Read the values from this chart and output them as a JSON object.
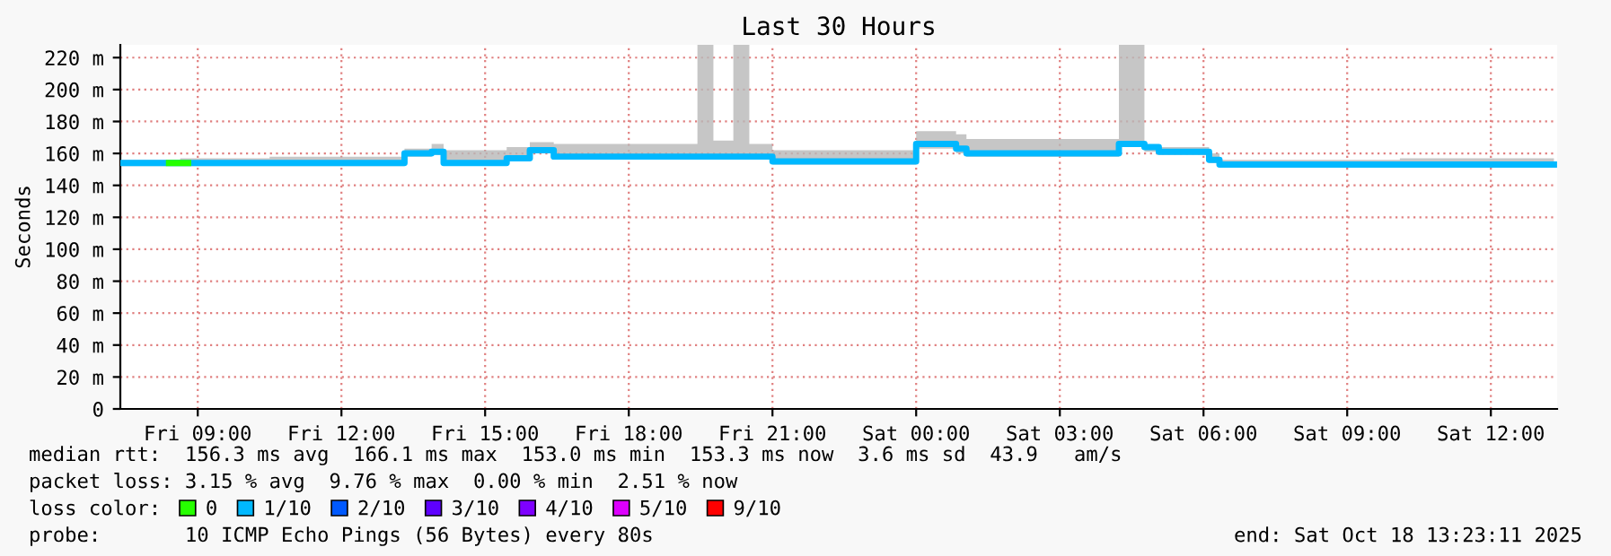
{
  "chart_data": {
    "type": "step",
    "title": "Last 30 Hours",
    "ylabel": "Seconds",
    "legend_title": "loss color:",
    "xlim": [
      "2025-10-17T07:23",
      "2025-10-18T13:23"
    ],
    "xticks": [
      {
        "value": "2025-10-17T09:00",
        "label": "Fri 09:00"
      },
      {
        "value": "2025-10-17T12:00",
        "label": "Fri 12:00"
      },
      {
        "value": "2025-10-17T15:00",
        "label": "Fri 15:00"
      },
      {
        "value": "2025-10-17T18:00",
        "label": "Fri 18:00"
      },
      {
        "value": "2025-10-17T21:00",
        "label": "Fri 21:00"
      },
      {
        "value": "2025-10-18T00:00",
        "label": "Sat 00:00"
      },
      {
        "value": "2025-10-18T03:00",
        "label": "Sat 03:00"
      },
      {
        "value": "2025-10-18T06:00",
        "label": "Sat 06:00"
      },
      {
        "value": "2025-10-18T09:00",
        "label": "Sat 09:00"
      },
      {
        "value": "2025-10-18T12:00",
        "label": "Sat 12:00"
      }
    ],
    "ylim": [
      0,
      228
    ],
    "yticks": [
      0,
      {
        "value": 20,
        "label": "20 m"
      },
      {
        "value": 40,
        "label": "40 m"
      },
      {
        "value": 60,
        "label": "60 m"
      },
      {
        "value": 80,
        "label": "80 m"
      },
      {
        "value": 100,
        "label": "100 m"
      },
      {
        "value": 120,
        "label": "120 m"
      },
      {
        "value": 140,
        "label": "140 m"
      },
      {
        "value": 160,
        "label": "160 m"
      },
      {
        "value": 180,
        "label": "180 m"
      },
      {
        "value": 200,
        "label": "200 m"
      },
      {
        "value": 220,
        "label": "220 m"
      }
    ],
    "grid": true,
    "legend": "bottom",
    "series": [
      {
        "name": "0",
        "color": "#26ff00",
        "x": [
          "2025-10-17T08:24",
          "2025-10-17T08:48"
        ],
        "values": [
          154,
          154
        ]
      },
      {
        "name": "1/10",
        "color": "#00b8ff",
        "x": [
          "2025-10-17T07:23",
          "2025-10-17T08:38",
          "2025-10-17T10:30",
          "2025-10-17T12:00",
          "2025-10-17T13:19",
          "2025-10-17T13:53",
          "2025-10-17T14:08",
          "2025-10-17T15:27",
          "2025-10-17T15:56",
          "2025-10-17T16:26",
          "2025-10-17T18:00",
          "2025-10-17T19:26",
          "2025-10-17T19:46",
          "2025-10-17T20:11",
          "2025-10-17T20:31",
          "2025-10-17T21:00",
          "2025-10-18T00:00",
          "2025-10-18T00:50",
          "2025-10-18T01:03",
          "2025-10-18T04:14",
          "2025-10-18T04:46",
          "2025-10-18T05:04",
          "2025-10-18T06:07",
          "2025-10-18T06:20",
          "2025-10-18T10:06",
          "2025-10-18T13:19"
        ],
        "values": [
          154,
          154,
          154,
          154,
          160,
          161,
          154,
          157,
          162,
          158,
          158,
          158,
          158,
          158,
          158,
          155,
          166,
          163,
          160,
          166,
          164,
          161,
          156,
          153,
          153,
          153
        ],
        "lower": [
          152,
          152,
          152,
          152,
          158,
          159,
          153,
          155,
          160,
          157,
          157,
          157,
          157,
          157,
          157,
          153,
          163,
          160,
          158,
          164,
          161,
          159,
          154,
          152,
          152,
          152
        ],
        "upper": [
          156,
          157,
          158,
          158,
          163,
          166,
          162,
          164,
          167,
          166,
          166,
          228,
          168,
          228,
          166,
          162,
          174,
          172,
          169,
          228,
          165,
          164,
          160,
          156,
          157,
          157
        ]
      },
      {
        "name": "2/10",
        "color": "#0059ff"
      },
      {
        "name": "3/10",
        "color": "#5e00ff"
      },
      {
        "name": "4/10",
        "color": "#7e00ff"
      },
      {
        "name": "5/10",
        "color": "#dd00ff"
      },
      {
        "name": "9/10",
        "color": "#ff0000"
      }
    ],
    "annotations": [
      "median rtt:  156.3 ms avg  166.1 ms max  153.0 ms min  153.3 ms now  3.6 ms sd  43.9   am/s",
      "packet loss: 3.15 % avg  9.76 % max  0.00 % min  2.51 % now",
      "probe:       10 ICMP Echo Pings (56 Bytes) every 80s",
      "end: Sat Oct 18 13:23:11 2025"
    ]
  }
}
